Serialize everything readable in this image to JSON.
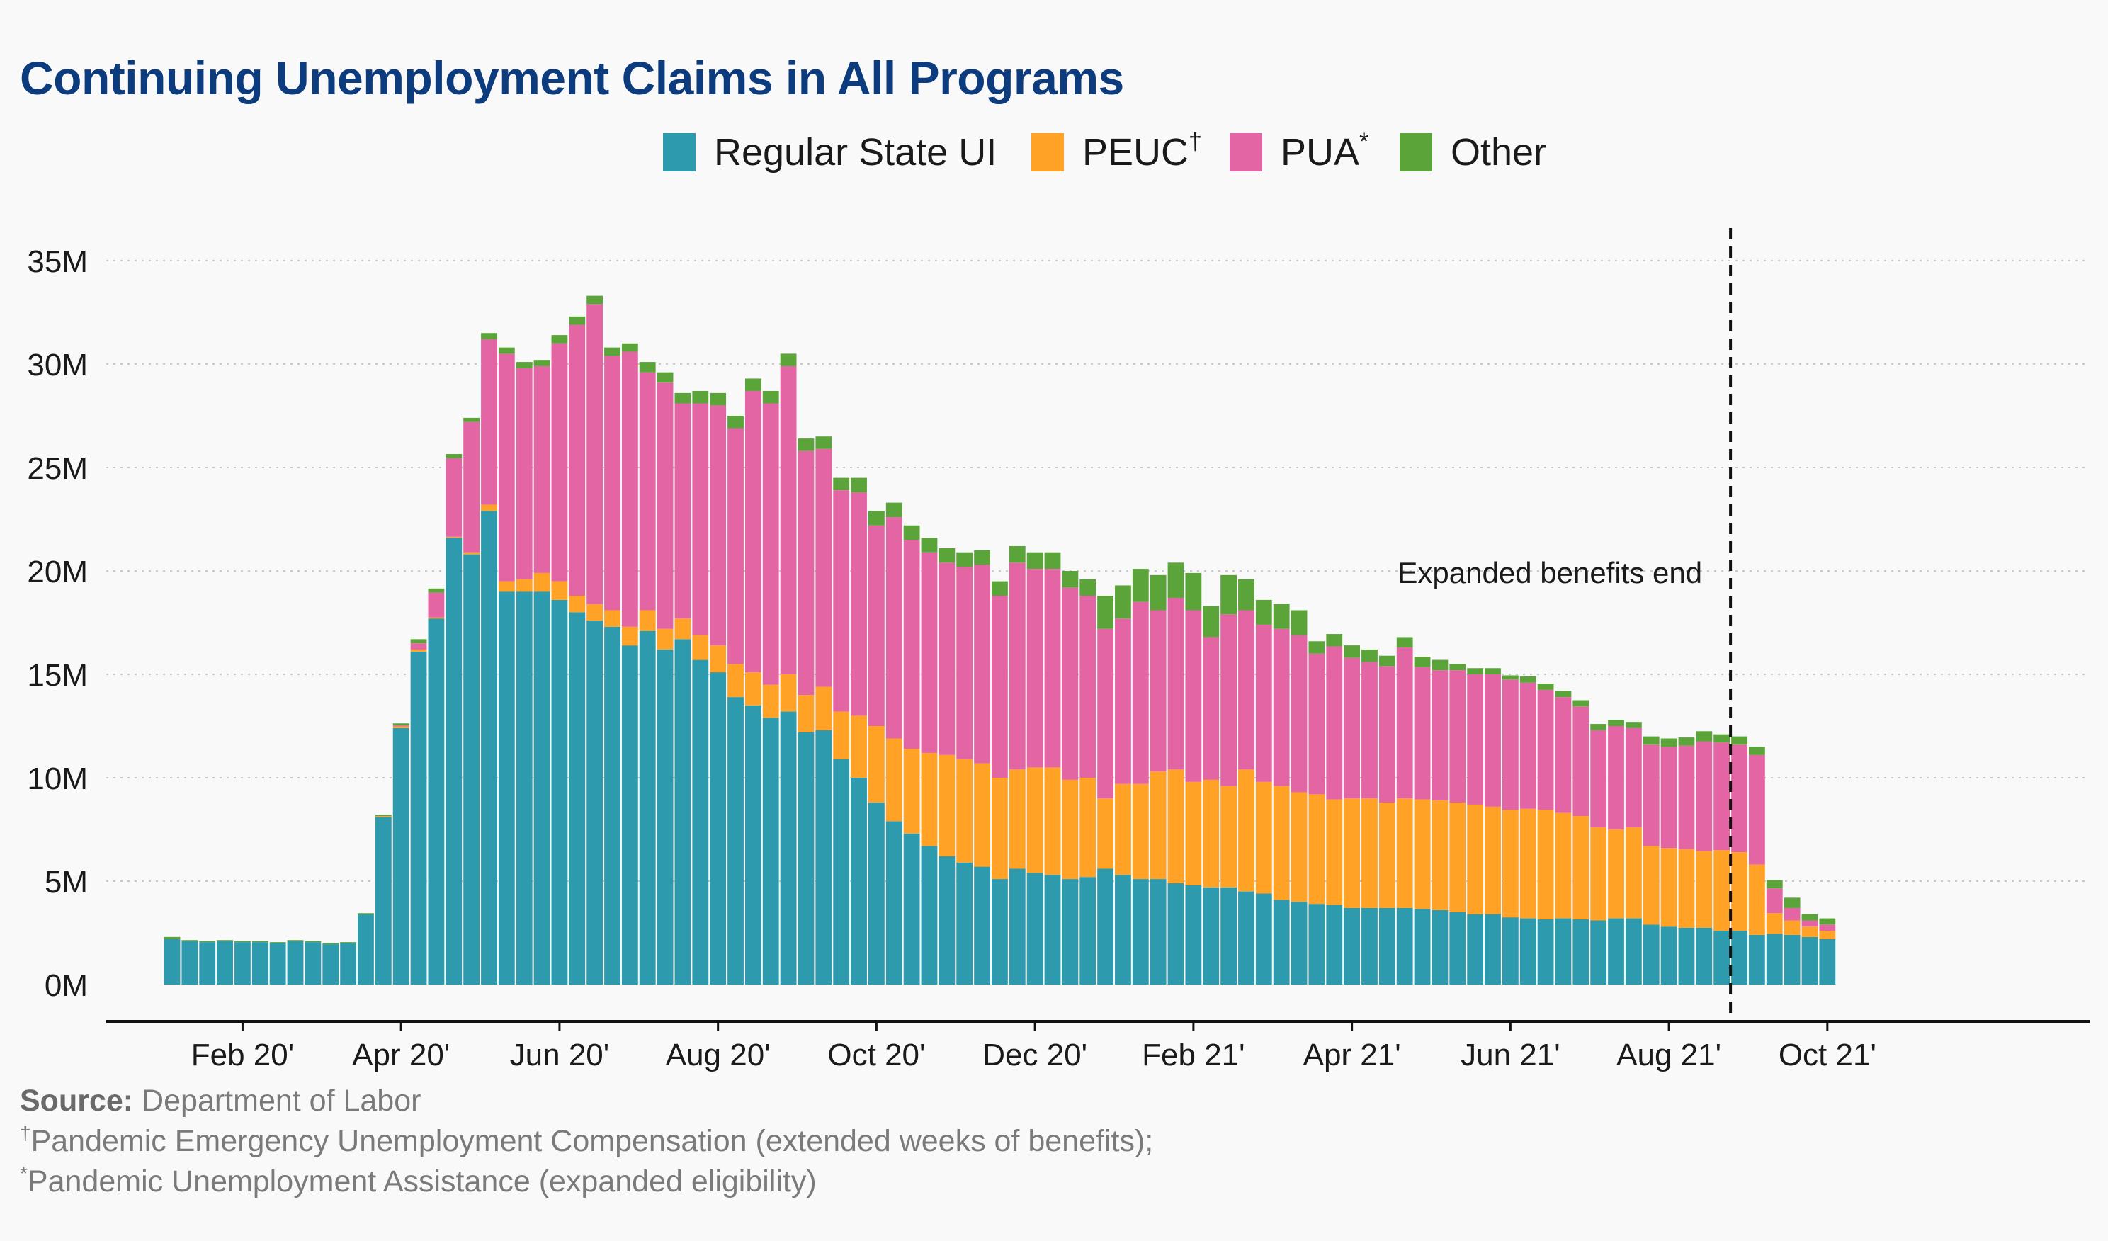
{
  "title": "Continuing Unemployment Claims in All Programs",
  "legend": [
    {
      "label": "Regular State UI",
      "mark": "",
      "color": "#2e9aad"
    },
    {
      "label": "PEUC",
      "mark": "†",
      "color": "#ffa226"
    },
    {
      "label": "PUA",
      "mark": "*",
      "color": "#e465a3"
    },
    {
      "label": "Other",
      "mark": "",
      "color": "#5ba43a"
    }
  ],
  "footer": {
    "source_label": "Source:",
    "source_text": " Department of Labor",
    "note1_mark": "†",
    "note1_text": "Pandemic Emergency Unemployment Compensation (extended weeks of benefits);",
    "note2_mark": "*",
    "note2_text": "Pandemic Unemployment Assistance (expanded eligibility)"
  },
  "chart_data": {
    "type": "bar",
    "stacked": true,
    "y_unit": "M",
    "ylim": [
      0,
      36
    ],
    "yticks": [
      0,
      5,
      10,
      15,
      20,
      25,
      30,
      35
    ],
    "ytick_labels": [
      "0M",
      "5M",
      "10M",
      "15M",
      "20M",
      "25M",
      "30M",
      "35M"
    ],
    "xtick_labels": [
      "Feb 20'",
      "Apr 20'",
      "Jun 20'",
      "Aug 20'",
      "Oct 20'",
      "Dec 20'",
      "Feb 21'",
      "Apr 21'",
      "Jun 21'",
      "Aug 21'",
      "Oct 21'"
    ],
    "xtick_bar_index": [
      4,
      13,
      22,
      31,
      40,
      49,
      58,
      67,
      76,
      85,
      94
    ],
    "grid": "horizontal dotted",
    "legend_position": "top-center",
    "annotation": {
      "text": "Expanded benefits end",
      "after_bar_index": 88
    },
    "series": [
      {
        "name": "Regular State UI",
        "color": "#2e9aad",
        "values": [
          2.2,
          2.1,
          2.05,
          2.1,
          2.05,
          2.05,
          2.0,
          2.1,
          2.05,
          1.95,
          2.0,
          3.4,
          8.1,
          12.4,
          16.1,
          17.7,
          21.6,
          20.8,
          22.9,
          19.0,
          19.0,
          19.0,
          18.6,
          18.0,
          17.6,
          17.3,
          16.4,
          17.1,
          16.2,
          16.7,
          15.7,
          15.1,
          13.9,
          13.5,
          12.9,
          13.2,
          12.2,
          12.3,
          10.9,
          10.0,
          8.8,
          7.9,
          7.3,
          6.7,
          6.2,
          5.9,
          5.7,
          5.1,
          5.6,
          5.4,
          5.3,
          5.1,
          5.2,
          5.6,
          5.3,
          5.1,
          5.1,
          4.9,
          4.8,
          4.7,
          4.7,
          4.5,
          4.4,
          4.1,
          4.0,
          3.9,
          3.85,
          3.7,
          3.7,
          3.7,
          3.7,
          3.65,
          3.6,
          3.5,
          3.4,
          3.4,
          3.25,
          3.2,
          3.15,
          3.2,
          3.15,
          3.1,
          3.2,
          3.2,
          2.9,
          2.8,
          2.75,
          2.75,
          2.6,
          2.6,
          2.4,
          2.45,
          2.4,
          2.3,
          2.2
        ]
      },
      {
        "name": "PEUC",
        "color": "#ffa226",
        "values": [
          0,
          0,
          0,
          0,
          0,
          0,
          0,
          0,
          0,
          0,
          0,
          0,
          0.05,
          0.08,
          0.1,
          0.05,
          0.05,
          0.1,
          0.3,
          0.5,
          0.6,
          0.9,
          0.9,
          0.8,
          0.8,
          0.8,
          0.9,
          1.0,
          1.0,
          1.0,
          1.2,
          1.3,
          1.6,
          1.6,
          1.6,
          1.8,
          1.8,
          2.1,
          2.3,
          3.0,
          3.7,
          4.0,
          4.1,
          4.5,
          4.9,
          5.0,
          5.0,
          4.9,
          4.8,
          5.1,
          5.2,
          4.8,
          4.8,
          3.4,
          4.4,
          4.6,
          5.2,
          5.5,
          5.0,
          5.2,
          4.9,
          5.9,
          5.4,
          5.5,
          5.3,
          5.3,
          5.1,
          5.3,
          5.3,
          5.1,
          5.3,
          5.3,
          5.3,
          5.3,
          5.3,
          5.2,
          5.2,
          5.3,
          5.3,
          5.1,
          5.0,
          4.5,
          4.3,
          4.4,
          3.8,
          3.8,
          3.8,
          3.7,
          3.9,
          3.8,
          3.4,
          1.0,
          0.7,
          0.5,
          0.4
        ]
      },
      {
        "name": "PUA",
        "color": "#e465a3",
        "values": [
          0,
          0,
          0,
          0,
          0,
          0,
          0,
          0,
          0,
          0,
          0,
          0,
          0,
          0.05,
          0.3,
          1.2,
          3.8,
          6.3,
          8.0,
          11.0,
          10.2,
          10.0,
          11.5,
          13.1,
          14.5,
          12.3,
          13.3,
          11.5,
          11.9,
          10.4,
          11.2,
          11.6,
          11.4,
          13.6,
          13.6,
          14.9,
          11.8,
          11.5,
          10.7,
          10.8,
          9.7,
          10.7,
          10.1,
          9.7,
          9.3,
          9.3,
          9.6,
          8.8,
          10.0,
          9.6,
          9.6,
          9.3,
          8.8,
          8.2,
          8.0,
          8.8,
          7.8,
          8.3,
          8.3,
          6.9,
          8.3,
          7.7,
          7.6,
          7.6,
          7.6,
          6.8,
          7.4,
          6.8,
          6.6,
          6.6,
          7.3,
          6.4,
          6.3,
          6.4,
          6.3,
          6.4,
          6.3,
          6.1,
          5.8,
          5.6,
          5.3,
          4.7,
          5.0,
          4.8,
          4.9,
          4.9,
          5.0,
          5.3,
          5.2,
          5.2,
          5.3,
          1.2,
          0.6,
          0.3,
          0.3
        ]
      },
      {
        "name": "Other",
        "color": "#5ba43a",
        "values": [
          0.1,
          0.05,
          0.05,
          0.05,
          0.05,
          0.05,
          0.05,
          0.05,
          0.05,
          0.05,
          0.05,
          0.05,
          0.05,
          0.1,
          0.2,
          0.2,
          0.2,
          0.2,
          0.3,
          0.3,
          0.3,
          0.3,
          0.4,
          0.4,
          0.4,
          0.4,
          0.4,
          0.5,
          0.5,
          0.5,
          0.6,
          0.6,
          0.6,
          0.6,
          0.6,
          0.6,
          0.6,
          0.6,
          0.6,
          0.7,
          0.7,
          0.7,
          0.7,
          0.7,
          0.7,
          0.7,
          0.7,
          0.7,
          0.8,
          0.8,
          0.8,
          0.8,
          0.8,
          1.6,
          1.6,
          1.6,
          1.7,
          1.7,
          1.8,
          1.5,
          1.9,
          1.5,
          1.2,
          1.2,
          1.2,
          0.6,
          0.6,
          0.6,
          0.6,
          0.5,
          0.5,
          0.5,
          0.5,
          0.3,
          0.3,
          0.3,
          0.2,
          0.3,
          0.3,
          0.3,
          0.3,
          0.3,
          0.3,
          0.3,
          0.4,
          0.4,
          0.4,
          0.5,
          0.4,
          0.4,
          0.4,
          0.4,
          0.5,
          0.3,
          0.3
        ]
      }
    ]
  }
}
